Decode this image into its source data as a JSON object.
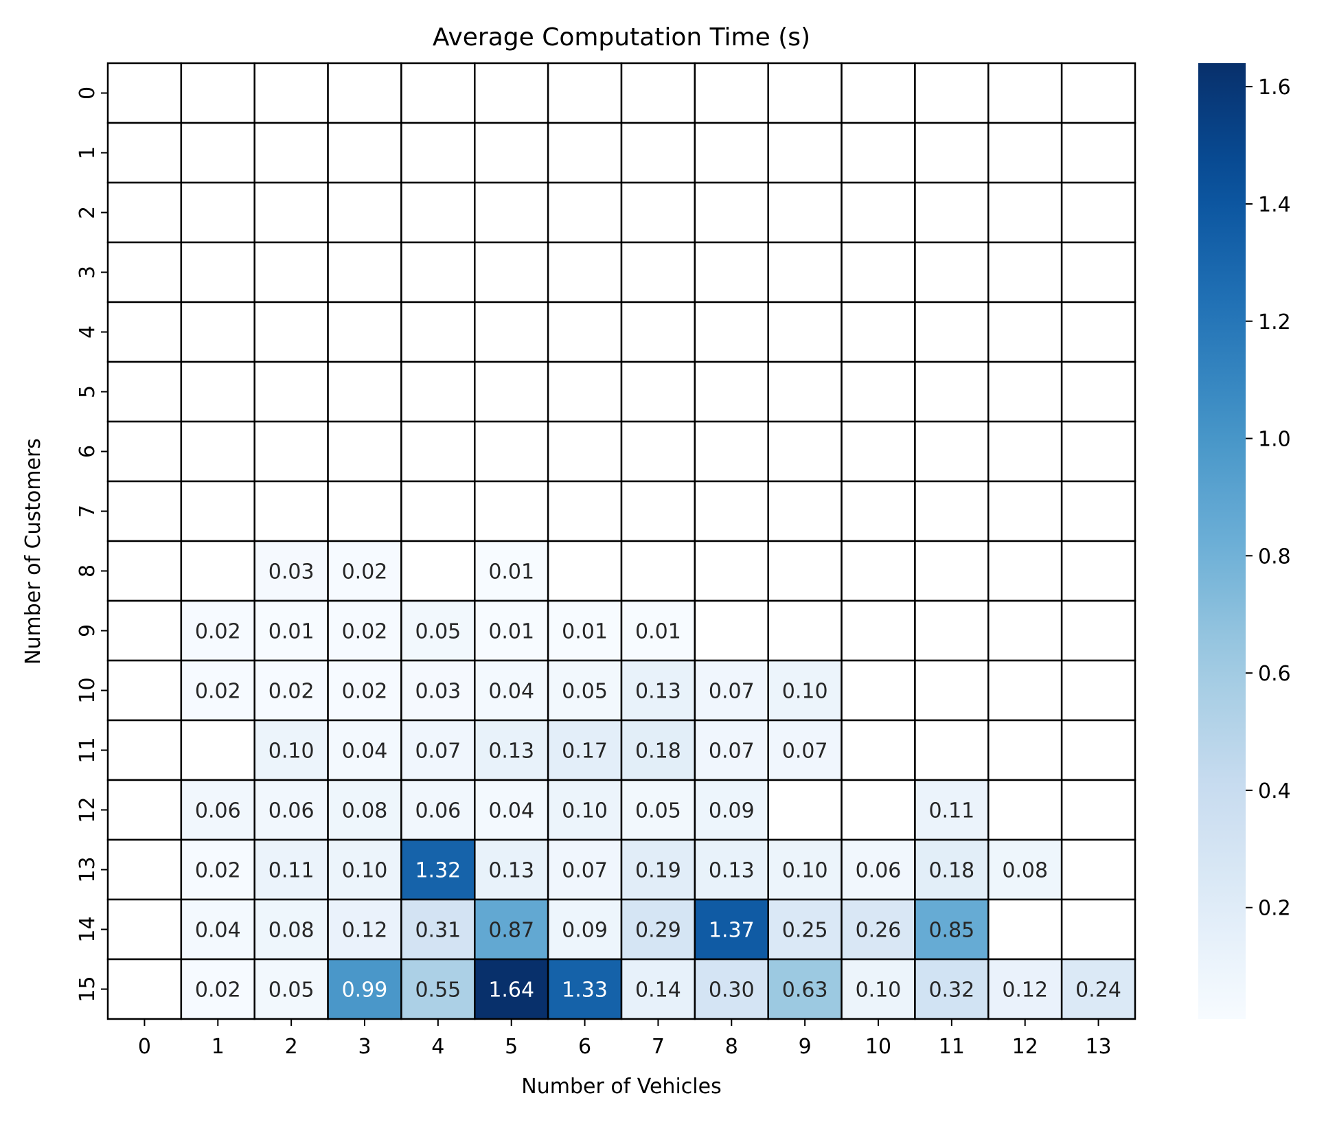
{
  "chart_data": {
    "type": "heatmap",
    "title": "Average Computation Time (s)",
    "xlabel": "Number of Vehicles",
    "ylabel": "Number of Customers",
    "x_categories": [
      "0",
      "1",
      "2",
      "3",
      "4",
      "5",
      "6",
      "7",
      "8",
      "9",
      "10",
      "11",
      "12",
      "13"
    ],
    "y_categories": [
      "0",
      "1",
      "2",
      "3",
      "4",
      "5",
      "6",
      "7",
      "8",
      "9",
      "10",
      "11",
      "12",
      "13",
      "14",
      "15"
    ],
    "values": [
      [
        null,
        null,
        null,
        null,
        null,
        null,
        null,
        null,
        null,
        null,
        null,
        null,
        null,
        null
      ],
      [
        null,
        null,
        null,
        null,
        null,
        null,
        null,
        null,
        null,
        null,
        null,
        null,
        null,
        null
      ],
      [
        null,
        null,
        null,
        null,
        null,
        null,
        null,
        null,
        null,
        null,
        null,
        null,
        null,
        null
      ],
      [
        null,
        null,
        null,
        null,
        null,
        null,
        null,
        null,
        null,
        null,
        null,
        null,
        null,
        null
      ],
      [
        null,
        null,
        null,
        null,
        null,
        null,
        null,
        null,
        null,
        null,
        null,
        null,
        null,
        null
      ],
      [
        null,
        null,
        null,
        null,
        null,
        null,
        null,
        null,
        null,
        null,
        null,
        null,
        null,
        null
      ],
      [
        null,
        null,
        null,
        null,
        null,
        null,
        null,
        null,
        null,
        null,
        null,
        null,
        null,
        null
      ],
      [
        null,
        null,
        null,
        null,
        null,
        null,
        null,
        null,
        null,
        null,
        null,
        null,
        null,
        null
      ],
      [
        null,
        null,
        0.03,
        0.02,
        null,
        0.01,
        null,
        null,
        null,
        null,
        null,
        null,
        null,
        null
      ],
      [
        null,
        0.02,
        0.01,
        0.02,
        0.05,
        0.01,
        0.01,
        0.01,
        null,
        null,
        null,
        null,
        null,
        null
      ],
      [
        null,
        0.02,
        0.02,
        0.02,
        0.03,
        0.04,
        0.05,
        0.13,
        0.07,
        0.1,
        null,
        null,
        null,
        null
      ],
      [
        null,
        null,
        0.1,
        0.04,
        0.07,
        0.13,
        0.17,
        0.18,
        0.07,
        0.07,
        null,
        null,
        null,
        null
      ],
      [
        null,
        0.06,
        0.06,
        0.08,
        0.06,
        0.04,
        0.1,
        0.05,
        0.09,
        null,
        null,
        0.11,
        null,
        null
      ],
      [
        null,
        0.02,
        0.11,
        0.1,
        1.32,
        0.13,
        0.07,
        0.19,
        0.13,
        0.1,
        0.06,
        0.18,
        0.08,
        null
      ],
      [
        null,
        0.04,
        0.08,
        0.12,
        0.31,
        0.87,
        0.09,
        0.29,
        1.37,
        0.25,
        0.26,
        0.85,
        null,
        null
      ],
      [
        null,
        0.02,
        0.05,
        0.99,
        0.55,
        1.64,
        1.33,
        0.14,
        0.3,
        0.63,
        0.1,
        0.32,
        0.12,
        0.24
      ]
    ],
    "value_format": "2 decimals",
    "colormap": "Blues",
    "vmin": 0.01,
    "vmax": 1.64,
    "colorbar_ticks": [
      0.2,
      0.4,
      0.6,
      0.8,
      1.0,
      1.2,
      1.4,
      1.6
    ],
    "colorbar_tick_labels": [
      "0.2",
      "0.4",
      "0.6",
      "0.8",
      "1.0",
      "1.2",
      "1.4",
      "1.6"
    ],
    "grid": true,
    "legend": "colorbar-right"
  }
}
